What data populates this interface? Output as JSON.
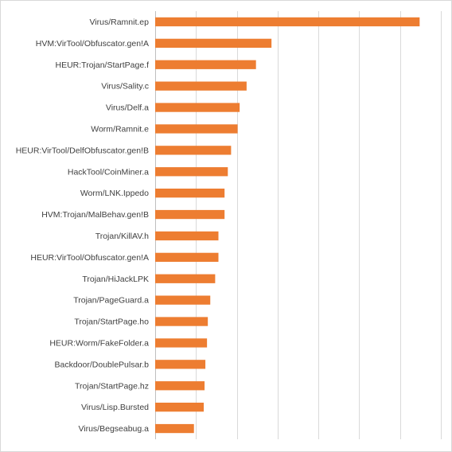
{
  "chart_data": {
    "type": "bar",
    "orientation": "horizontal",
    "title": "",
    "xlabel": "",
    "ylabel": "",
    "categories": [
      "Virus/Ramnit.ep",
      "HVM:VirTool/Obfuscator.gen!A",
      "HEUR:Trojan/StartPage.f",
      "Virus/Sality.c",
      "Virus/Delf.a",
      "Worm/Ramnit.e",
      "HEUR:VirTool/DelfObfuscator.gen!B",
      "HackTool/CoinMiner.a",
      "Worm/LNK.Ippedo",
      "HVM:Trojan/MalBehav.gen!B",
      "Trojan/KillAV.h",
      "HEUR:VirTool/Obfuscator.gen!A",
      "Trojan/HiJackLPK",
      "Trojan/PageGuard.a",
      "Trojan/StartPage.ho",
      "HEUR:Worm/FakeFolder.a",
      "Backdoor/DoublePulsar.b",
      "Trojan/StartPage.hz",
      "Virus/Lisp.Bursted",
      "Virus/Begseabug.a"
    ],
    "values": [
      6.48,
      2.85,
      2.47,
      2.24,
      2.07,
      2.02,
      1.86,
      1.78,
      1.7,
      1.7,
      1.55,
      1.55,
      1.47,
      1.35,
      1.29,
      1.27,
      1.23,
      1.21,
      1.19,
      0.95
    ],
    "xlim": [
      0,
      7
    ],
    "grid": true,
    "legend": false,
    "bar_color": "#ed7d31",
    "grid_color": "#d9d9d9",
    "label_color": "#404040"
  }
}
